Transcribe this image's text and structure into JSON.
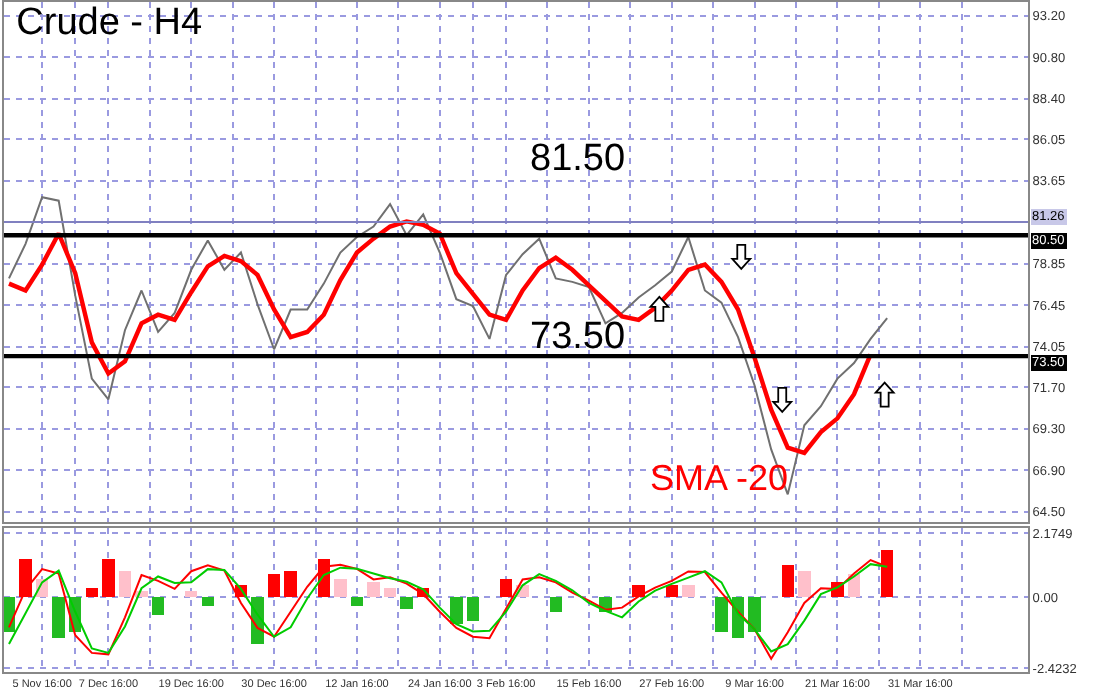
{
  "chart_data": [
    {
      "type": "line",
      "title": "Crude - H4",
      "tick_labels": "y",
      "grid": true,
      "categories": [
        null,
        null,
        null,
        null,
        null,
        null,
        null,
        null,
        null,
        null,
        null,
        null,
        null,
        null,
        null,
        null,
        null,
        null,
        null,
        null,
        null,
        null,
        null,
        null,
        null,
        null,
        null,
        null,
        null,
        null,
        null,
        null,
        null,
        null,
        null,
        null,
        null,
        null,
        null,
        null,
        null,
        null,
        null,
        null,
        null,
        null,
        null,
        null,
        null,
        null,
        null,
        null,
        null,
        null,
        null,
        null,
        null,
        null,
        null,
        null,
        null,
        null
      ],
      "ylim": [
        63.9,
        94
      ],
      "yticks": [
        {
          "value": 93.2,
          "label": "93.20"
        },
        {
          "value": 90.8,
          "label": "90.80"
        },
        {
          "value": 88.4,
          "label": "88.40"
        },
        {
          "value": 86.05,
          "label": "86.05"
        },
        {
          "value": 83.65,
          "label": "83.65"
        },
        {
          "value": 78.85,
          "label": "78.85"
        },
        {
          "value": 76.45,
          "label": "76.45"
        },
        {
          "value": 74.05,
          "label": "74.05"
        },
        {
          "value": 71.7,
          "label": "71.70"
        },
        {
          "value": 69.3,
          "label": "69.30"
        },
        {
          "value": 66.9,
          "label": "66.90"
        },
        {
          "value": 64.5,
          "label": "64.50"
        }
      ],
      "ref_lines": [
        {
          "axis": "y",
          "value": 81.26,
          "label": "81.26",
          "color": "#8080c0"
        },
        {
          "axis": "y",
          "value": 80.5,
          "label": "80.50",
          "color": "#000000"
        },
        {
          "axis": "y",
          "value": 73.5,
          "label": "73.50",
          "color": "#000000"
        }
      ],
      "annotations": [
        "81.50",
        "73.50"
      ],
      "series": [
        {
          "color": "#707070",
          "values": [
            78.0,
            80.0,
            82.7,
            82.5,
            77.0,
            72.2,
            71.0,
            75.0,
            77.3,
            74.9,
            76.0,
            78.5,
            80.2,
            78.5,
            79.5,
            76.5,
            73.9,
            76.2,
            76.2,
            77.7,
            79.5,
            80.4,
            81.0,
            82.3,
            80.5,
            81.7,
            79.5,
            76.8,
            76.4,
            74.5,
            78.2,
            79.4,
            80.3,
            78.0,
            77.8,
            77.5,
            75.4,
            76.0,
            76.9,
            77.6,
            78.4,
            80.4,
            77.3,
            76.6,
            74.6,
            71.8,
            68.1,
            65.5,
            69.5,
            70.6,
            72.2,
            73.1,
            74.5,
            75.7,
            null,
            null,
            null,
            null,
            null,
            null,
            null,
            null
          ]
        },
        {
          "name": "SMA -20",
          "color": "#ff0000",
          "values": [
            77.7,
            77.3,
            78.8,
            80.6,
            78.3,
            74.3,
            72.5,
            73.2,
            75.4,
            75.9,
            75.6,
            77.2,
            78.7,
            79.3,
            79.0,
            78.2,
            76.2,
            74.6,
            74.9,
            75.9,
            77.9,
            79.5,
            80.3,
            81.0,
            81.3,
            81.1,
            80.6,
            78.3,
            77.1,
            75.9,
            75.6,
            77.3,
            78.6,
            79.2,
            78.5,
            77.6,
            76.7,
            75.8,
            75.6,
            76.3,
            77.3,
            78.5,
            78.8,
            77.8,
            76.2,
            73.4,
            70.4,
            68.2,
            67.9,
            69.1,
            69.9,
            71.3,
            73.6,
            null,
            null,
            null,
            null,
            null,
            null,
            null,
            null,
            null
          ]
        }
      ]
    },
    {
      "type": "bar",
      "grid": true,
      "categories": [
        null,
        null,
        "5 Nov 16:00",
        null,
        null,
        null,
        "7 Dec 16:00",
        null,
        null,
        null,
        null,
        "19 Dec 16:00",
        null,
        null,
        null,
        null,
        "30 Dec 16:00",
        null,
        null,
        null,
        null,
        "12 Jan 16:00",
        null,
        null,
        null,
        null,
        "24 Jan 16:00",
        null,
        null,
        null,
        "3 Feb 16:00",
        null,
        null,
        null,
        null,
        "15 Feb 16:00",
        null,
        null,
        null,
        null,
        "27 Feb 16:00",
        null,
        null,
        null,
        null,
        "9 Mar 16:00",
        null,
        null,
        null,
        null,
        "21 Mar 16:00",
        null,
        null,
        null,
        null,
        "31 Mar 16:00",
        null,
        null,
        null,
        null,
        null,
        null
      ],
      "ylim": [
        -2.55,
        2.35
      ],
      "yticks": [
        {
          "value": 2.1749,
          "label": "2.1749"
        },
        {
          "value": 0,
          "label": "0.00"
        },
        {
          "value": -2.4232,
          "label": "-2.4232"
        }
      ],
      "series": [
        {
          "values": [
            -1.2,
            1.3,
            0.6,
            -1.4,
            -1.2,
            0.3,
            1.3,
            0.9,
            0.2,
            -0.6,
            null,
            0.2,
            -0.3,
            null,
            0.4,
            -1.6,
            0.8,
            0.9,
            null,
            1.3,
            0.6,
            -0.3,
            0.5,
            0.3,
            -0.4,
            0.3,
            null,
            -0.9,
            -0.8,
            null,
            0.6,
            0.4,
            null,
            -0.5,
            null,
            null,
            -0.5,
            null,
            0.4,
            null,
            0.4,
            0.4,
            null,
            -1.2,
            -1.4,
            -1.2,
            null,
            1.1,
            0.9,
            null,
            0.5,
            0.8,
            null,
            1.6,
            null,
            null,
            null,
            null,
            null,
            null,
            null,
            null
          ],
          "colors": [
            "#22bb22",
            "#ff0000",
            "#ffc0cb",
            "#22bb22",
            "#22bb22",
            "#ff0000",
            "#ff0000",
            "#ffc0cb",
            "#ffc0cb",
            "#22bb22",
            "#ffffff",
            "#ffc0cb",
            "#22bb22",
            "#ffffff",
            "#ff0000",
            "#22bb22",
            "#ff0000",
            "#ff0000",
            "#ffffff",
            "#ff0000",
            "#ffc0cb",
            "#22bb22",
            "#ffc0cb",
            "#ffc0cb",
            "#22bb22",
            "#ff0000",
            "#ffffff",
            "#22bb22",
            "#22bb22",
            "#ffffff",
            "#ff0000",
            "#ffc0cb",
            "#ffffff",
            "#22bb22",
            "#ffffff",
            "#ffffff",
            "#22bb22",
            "#ffffff",
            "#ff0000",
            "#ffffff",
            "#ff0000",
            "#ffc0cb",
            "#ffffff",
            "#22bb22",
            "#22bb22",
            "#22bb22",
            "#ffffff",
            "#ff0000",
            "#ffc0cb",
            "#ffffff",
            "#ff0000",
            "#ffc0cb",
            "#ffffff",
            "#ff0000",
            "#ffffff",
            "#ffffff",
            "#ffffff",
            "#ffffff",
            "#ffffff",
            "#ffffff",
            "#ffffff",
            "#ffffff"
          ]
        },
        {
          "type": "line",
          "color": "#ff0000",
          "values": [
            -1.03,
            0.25,
            0.95,
            0.8,
            -1.3,
            -1.9,
            -1.95,
            -0.69,
            0.75,
            0.55,
            0.28,
            0.88,
            1.08,
            0.9,
            -0.2,
            -1.05,
            -1.35,
            -0.5,
            0.35,
            1.03,
            1.1,
            0.96,
            0.6,
            0.67,
            0.46,
            0.1,
            -0.5,
            -1.05,
            -1.35,
            -1.4,
            -0.4,
            0.6,
            0.67,
            0.5,
            0.15,
            -0.12,
            -0.43,
            -0.36,
            0.02,
            0.32,
            0.55,
            0.87,
            0.85,
            0.15,
            -0.5,
            -1.1,
            -2.1,
            -1.2,
            -0.2,
            0.3,
            0.27,
            0.8,
            1.26,
            1.03,
            null,
            null,
            null,
            null,
            null,
            null,
            null,
            null
          ]
        },
        {
          "type": "line",
          "color": "#00cc00",
          "values": [
            -1.6,
            -0.55,
            0.5,
            0.9,
            -0.5,
            -1.75,
            -1.9,
            -1.0,
            0.3,
            0.7,
            0.48,
            0.5,
            0.95,
            0.92,
            0.28,
            -0.6,
            -1.35,
            -1.03,
            -0.05,
            0.75,
            1.0,
            0.96,
            0.8,
            0.64,
            0.52,
            0.26,
            -0.36,
            -0.92,
            -1.17,
            -1.15,
            -0.5,
            0.4,
            0.78,
            0.55,
            0.23,
            -0.2,
            -0.47,
            -0.69,
            -0.15,
            0.22,
            0.45,
            0.66,
            0.88,
            0.5,
            -0.57,
            -1.1,
            -1.85,
            -1.6,
            -0.8,
            0.1,
            0.33,
            0.7,
            1.12,
            1.03,
            null,
            null,
            null,
            null,
            null,
            null,
            null,
            null
          ]
        }
      ]
    }
  ]
}
